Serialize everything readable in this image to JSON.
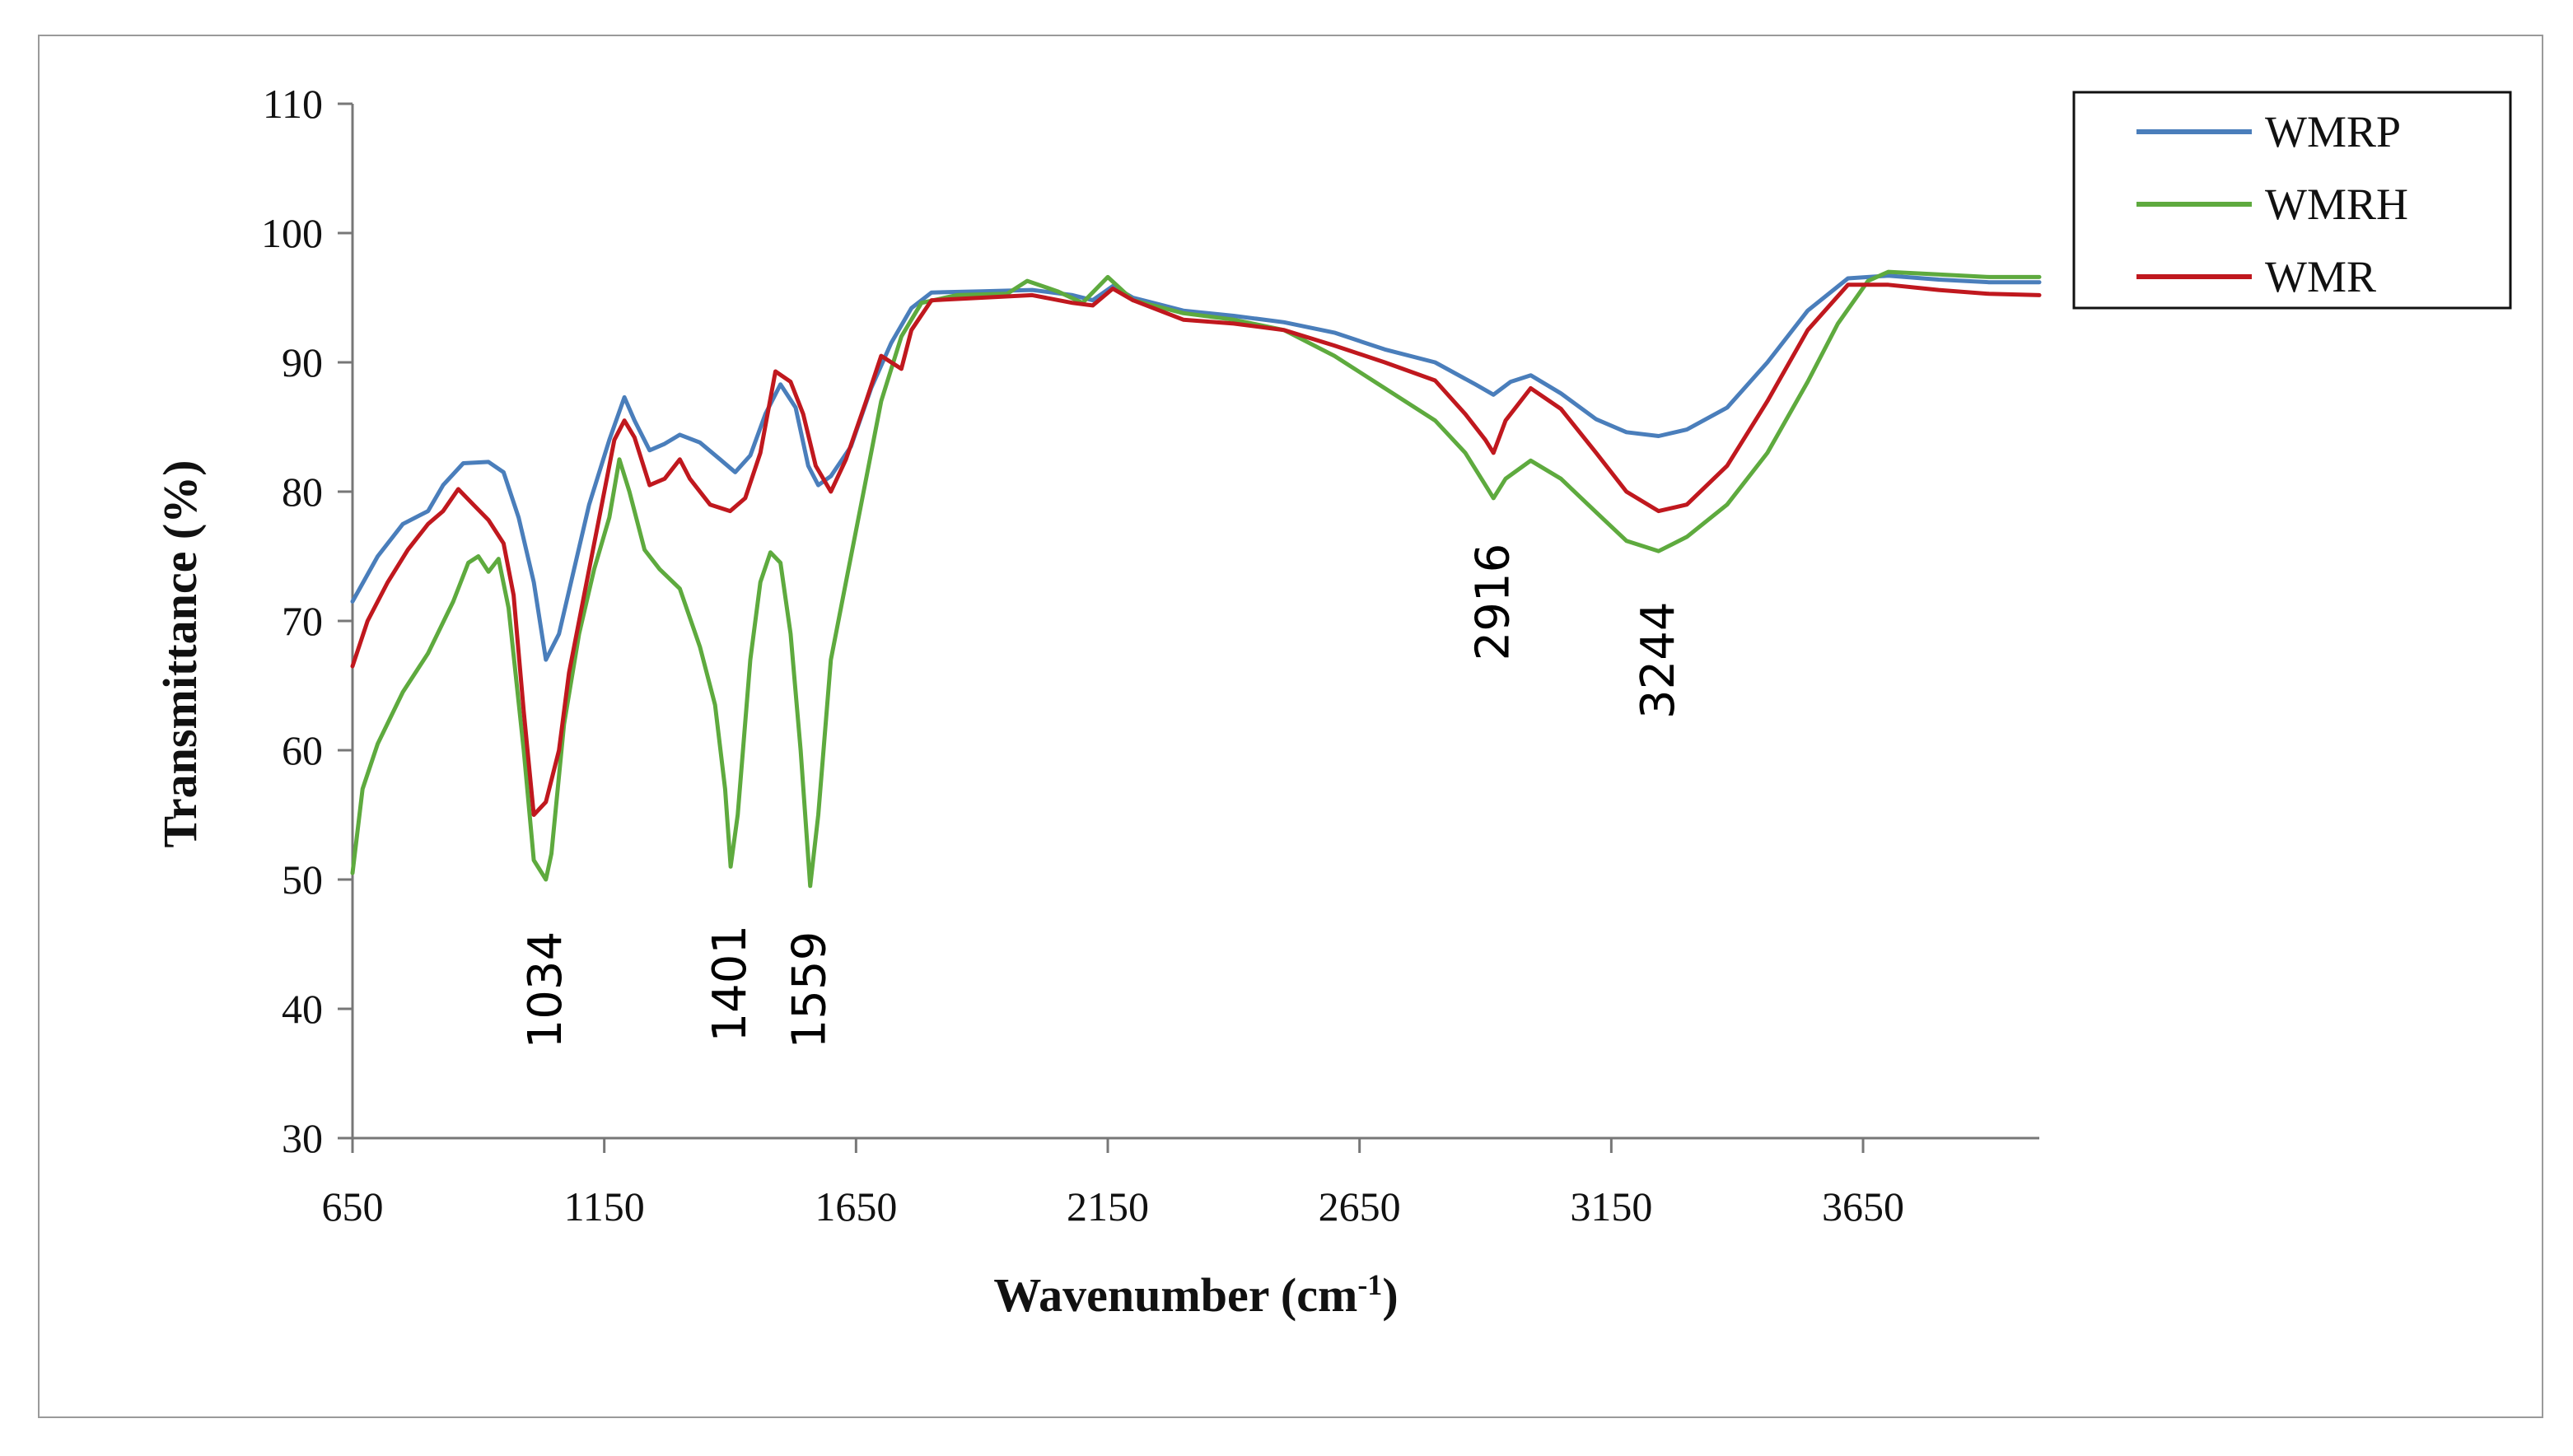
{
  "chart_data": {
    "type": "line",
    "xlabel": "Wavenumber (cm",
    "xlabel_sup": "-1",
    "xlabel_end": ")",
    "ylabel": "Transmittance (%)",
    "xlim": [
      650,
      4000
    ],
    "ylim": [
      30,
      110
    ],
    "xticks": [
      "650",
      "1150",
      "1650",
      "2150",
      "2650",
      "3150",
      "3650"
    ],
    "yticks": [
      "30",
      "40",
      "50",
      "60",
      "70",
      "80",
      "90",
      "100",
      "110"
    ],
    "legend": {
      "position": "top-right"
    },
    "series": [
      {
        "name": "WMRP",
        "color": "#4a7ebb",
        "points": [
          [
            650,
            71.5
          ],
          [
            700,
            75
          ],
          [
            750,
            77.5
          ],
          [
            800,
            78.5
          ],
          [
            830,
            80.5
          ],
          [
            870,
            82.2
          ],
          [
            920,
            82.3
          ],
          [
            950,
            81.5
          ],
          [
            980,
            78
          ],
          [
            1010,
            73
          ],
          [
            1034,
            67
          ],
          [
            1060,
            69
          ],
          [
            1090,
            74
          ],
          [
            1120,
            79
          ],
          [
            1160,
            84
          ],
          [
            1190,
            87.3
          ],
          [
            1210,
            85.5
          ],
          [
            1240,
            83.2
          ],
          [
            1270,
            83.7
          ],
          [
            1300,
            84.4
          ],
          [
            1340,
            83.8
          ],
          [
            1380,
            82.5
          ],
          [
            1410,
            81.5
          ],
          [
            1440,
            82.8
          ],
          [
            1470,
            86
          ],
          [
            1500,
            88.3
          ],
          [
            1530,
            86.5
          ],
          [
            1555,
            82
          ],
          [
            1575,
            80.5
          ],
          [
            1600,
            81.2
          ],
          [
            1640,
            83.5
          ],
          [
            1680,
            88
          ],
          [
            1720,
            91.5
          ],
          [
            1760,
            94.2
          ],
          [
            1800,
            95.4
          ],
          [
            1900,
            95.5
          ],
          [
            2000,
            95.6
          ],
          [
            2080,
            95.2
          ],
          [
            2120,
            94.8
          ],
          [
            2160,
            95.9
          ],
          [
            2200,
            95
          ],
          [
            2300,
            94
          ],
          [
            2400,
            93.6
          ],
          [
            2500,
            93.1
          ],
          [
            2600,
            92.3
          ],
          [
            2700,
            91
          ],
          [
            2800,
            90
          ],
          [
            2880,
            88.3
          ],
          [
            2916,
            87.5
          ],
          [
            2950,
            88.5
          ],
          [
            2990,
            89
          ],
          [
            3050,
            87.6
          ],
          [
            3120,
            85.6
          ],
          [
            3180,
            84.6
          ],
          [
            3244,
            84.3
          ],
          [
            3300,
            84.8
          ],
          [
            3380,
            86.5
          ],
          [
            3460,
            90
          ],
          [
            3540,
            94
          ],
          [
            3620,
            96.5
          ],
          [
            3700,
            96.7
          ],
          [
            3800,
            96.4
          ],
          [
            3900,
            96.2
          ],
          [
            4000,
            96.2
          ]
        ]
      },
      {
        "name": "WMRH",
        "color": "#5eaa3e",
        "points": [
          [
            650,
            50.5
          ],
          [
            670,
            57
          ],
          [
            700,
            60.5
          ],
          [
            750,
            64.5
          ],
          [
            800,
            67.5
          ],
          [
            850,
            71.5
          ],
          [
            880,
            74.5
          ],
          [
            900,
            75
          ],
          [
            920,
            73.8
          ],
          [
            940,
            74.8
          ],
          [
            960,
            71
          ],
          [
            990,
            60
          ],
          [
            1010,
            51.5
          ],
          [
            1034,
            50
          ],
          [
            1045,
            52
          ],
          [
            1070,
            62
          ],
          [
            1100,
            69
          ],
          [
            1130,
            74
          ],
          [
            1160,
            78
          ],
          [
            1180,
            82.5
          ],
          [
            1200,
            80
          ],
          [
            1230,
            75.5
          ],
          [
            1260,
            74
          ],
          [
            1300,
            72.5
          ],
          [
            1340,
            68
          ],
          [
            1370,
            63.5
          ],
          [
            1390,
            57
          ],
          [
            1401,
            51
          ],
          [
            1415,
            55
          ],
          [
            1440,
            67
          ],
          [
            1460,
            73
          ],
          [
            1480,
            75.3
          ],
          [
            1500,
            74.5
          ],
          [
            1520,
            69
          ],
          [
            1540,
            60
          ],
          [
            1559,
            49.5
          ],
          [
            1575,
            55
          ],
          [
            1600,
            67
          ],
          [
            1630,
            73
          ],
          [
            1660,
            79
          ],
          [
            1700,
            87
          ],
          [
            1740,
            92
          ],
          [
            1780,
            94.6
          ],
          [
            1850,
            95.2
          ],
          [
            1950,
            95.3
          ],
          [
            1990,
            96.3
          ],
          [
            2050,
            95.5
          ],
          [
            2100,
            94.6
          ],
          [
            2150,
            96.6
          ],
          [
            2200,
            94.8
          ],
          [
            2300,
            93.8
          ],
          [
            2400,
            93.3
          ],
          [
            2500,
            92.5
          ],
          [
            2600,
            90.5
          ],
          [
            2700,
            88
          ],
          [
            2800,
            85.5
          ],
          [
            2860,
            83
          ],
          [
            2900,
            80.5
          ],
          [
            2916,
            79.5
          ],
          [
            2940,
            81
          ],
          [
            2990,
            82.4
          ],
          [
            3050,
            81
          ],
          [
            3120,
            78.4
          ],
          [
            3180,
            76.2
          ],
          [
            3244,
            75.4
          ],
          [
            3300,
            76.5
          ],
          [
            3380,
            79
          ],
          [
            3460,
            83
          ],
          [
            3540,
            88.5
          ],
          [
            3600,
            93
          ],
          [
            3660,
            96.3
          ],
          [
            3700,
            97
          ],
          [
            3800,
            96.8
          ],
          [
            3900,
            96.6
          ],
          [
            4000,
            96.6
          ]
        ]
      },
      {
        "name": "WMR",
        "color": "#c0181e",
        "points": [
          [
            650,
            66.5
          ],
          [
            680,
            70
          ],
          [
            720,
            73
          ],
          [
            760,
            75.5
          ],
          [
            800,
            77.5
          ],
          [
            830,
            78.5
          ],
          [
            860,
            80.2
          ],
          [
            890,
            79
          ],
          [
            920,
            77.8
          ],
          [
            950,
            76
          ],
          [
            970,
            72
          ],
          [
            990,
            63
          ],
          [
            1010,
            55
          ],
          [
            1034,
            56
          ],
          [
            1060,
            60
          ],
          [
            1080,
            66
          ],
          [
            1110,
            72
          ],
          [
            1140,
            78
          ],
          [
            1170,
            84
          ],
          [
            1190,
            85.5
          ],
          [
            1210,
            84.2
          ],
          [
            1240,
            80.5
          ],
          [
            1270,
            81
          ],
          [
            1300,
            82.5
          ],
          [
            1320,
            81
          ],
          [
            1360,
            79
          ],
          [
            1400,
            78.5
          ],
          [
            1430,
            79.5
          ],
          [
            1460,
            83
          ],
          [
            1490,
            89.3
          ],
          [
            1520,
            88.5
          ],
          [
            1545,
            86
          ],
          [
            1570,
            82
          ],
          [
            1600,
            80
          ],
          [
            1630,
            82.5
          ],
          [
            1670,
            87
          ],
          [
            1700,
            90.5
          ],
          [
            1740,
            89.5
          ],
          [
            1760,
            92.5
          ],
          [
            1800,
            94.8
          ],
          [
            1900,
            95
          ],
          [
            2000,
            95.2
          ],
          [
            2080,
            94.6
          ],
          [
            2120,
            94.4
          ],
          [
            2160,
            95.7
          ],
          [
            2200,
            94.8
          ],
          [
            2300,
            93.3
          ],
          [
            2400,
            93
          ],
          [
            2500,
            92.5
          ],
          [
            2600,
            91.3
          ],
          [
            2700,
            90
          ],
          [
            2800,
            88.6
          ],
          [
            2860,
            86
          ],
          [
            2900,
            84
          ],
          [
            2916,
            83
          ],
          [
            2940,
            85.5
          ],
          [
            2990,
            88
          ],
          [
            3050,
            86.4
          ],
          [
            3120,
            83
          ],
          [
            3180,
            80
          ],
          [
            3244,
            78.5
          ],
          [
            3300,
            79
          ],
          [
            3380,
            82
          ],
          [
            3460,
            87
          ],
          [
            3540,
            92.5
          ],
          [
            3620,
            96
          ],
          [
            3700,
            96
          ],
          [
            3800,
            95.6
          ],
          [
            3900,
            95.3
          ],
          [
            4000,
            95.2
          ]
        ]
      }
    ],
    "annotations": [
      {
        "text": "1034",
        "x": 1034,
        "y": 46
      },
      {
        "text": "1401",
        "x": 1401,
        "y": 46.5
      },
      {
        "text": "1559",
        "x": 1559,
        "y": 46
      },
      {
        "text": "2916",
        "x": 2916,
        "y": 76
      },
      {
        "text": "3244",
        "x": 3244,
        "y": 71.5
      }
    ]
  }
}
